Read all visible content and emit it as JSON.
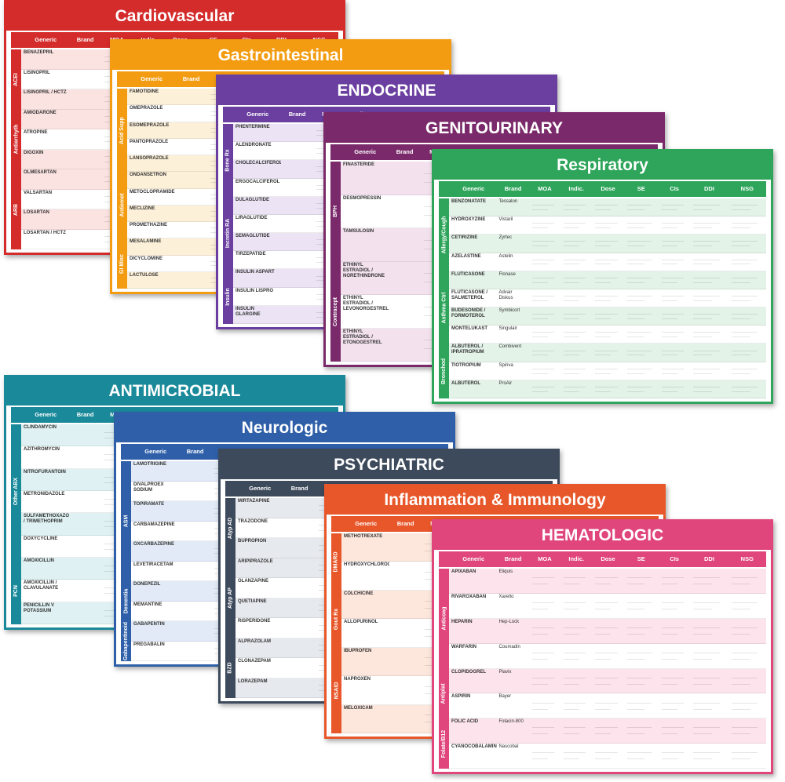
{
  "columns": [
    "Generic",
    "Brand",
    "MOA",
    "Indic.",
    "Dose",
    "SE",
    "CIs",
    "DDI",
    "NSG"
  ],
  "cards": [
    {
      "title": "Cardiovascular",
      "sections": [
        {
          "label": "ACEI",
          "rows": [
            {
              "generic": "BENAZEPRIL"
            },
            {
              "generic": "LISINOPRIL"
            },
            {
              "generic": "LISINOPRIL / HCTZ"
            }
          ]
        },
        {
          "label": "Antiarrhyth",
          "rows": [
            {
              "generic": "AMIODARONE"
            },
            {
              "generic": "ATROPINE"
            },
            {
              "generic": "DIGOXIN"
            }
          ]
        },
        {
          "label": "ARB",
          "rows": [
            {
              "generic": "OLMESARTAN"
            },
            {
              "generic": "VALSARTAN"
            },
            {
              "generic": "LOSARTAN"
            },
            {
              "generic": "LOSARTAN / HCTZ"
            }
          ]
        }
      ]
    },
    {
      "title": "Gastrointestinal",
      "sections": [
        {
          "label": "Acid Supp",
          "rows": [
            {
              "generic": "FAMOTIDINE"
            },
            {
              "generic": "OMEPRAZOLE"
            },
            {
              "generic": "ESOMEPRAZOLE"
            },
            {
              "generic": "PANTOPRAZOLE"
            },
            {
              "generic": "LANSOPRAZOLE"
            }
          ]
        },
        {
          "label": "Antiemet",
          "rows": [
            {
              "generic": "ONDANSETRON"
            },
            {
              "generic": "METOCLOPRAMIDE"
            },
            {
              "generic": "MECLIZINE"
            },
            {
              "generic": "PROMETHAZINE"
            }
          ]
        },
        {
          "label": "GI Misc",
          "rows": [
            {
              "generic": "MESALAMINE"
            },
            {
              "generic": "DICYCLOMINE"
            },
            {
              "generic": "LACTULOSE"
            }
          ]
        }
      ]
    },
    {
      "title": "ENDOCRINE",
      "sections": [
        {
          "label": "Bone Rx",
          "rows": [
            {
              "generic": "PHENTERMINE"
            },
            {
              "generic": "ALENDRONATE"
            },
            {
              "generic": "CHOLECALCIFEROL"
            },
            {
              "generic": "ERGOCALCIFEROL"
            }
          ]
        },
        {
          "label": "Incretin RA",
          "rows": [
            {
              "generic": "DULAGLUTIDE"
            },
            {
              "generic": "LIRAGLUTIDE"
            },
            {
              "generic": "SEMAGLUTIDE"
            },
            {
              "generic": "TIRZEPATIDE"
            }
          ]
        },
        {
          "label": "Insulin",
          "rows": [
            {
              "generic": "INSULIN ASPART"
            },
            {
              "generic": "INSULIN LISPRO"
            },
            {
              "generic": "INSULIN GLARGINE"
            }
          ]
        }
      ]
    },
    {
      "title": "GENITOURINARY",
      "sections": [
        {
          "label": "BPH",
          "rows": [
            {
              "generic": "FINASTERIDE"
            },
            {
              "generic": "DESMOPRESSIN"
            },
            {
              "generic": "TAMSULOSIN"
            }
          ]
        },
        {
          "label": "Contracept",
          "rows": [
            {
              "generic": "ETHINYL ESTRADIOL / NORETHINDRONE"
            },
            {
              "generic": "ETHINYL ESTRADIOL / LEVONORGESTREL"
            },
            {
              "generic": "ETHINYL ESTRADIOL / ETONOGESTREL"
            }
          ]
        }
      ]
    },
    {
      "title": "Respiratory",
      "sections": [
        {
          "label": "Allergy/Cough",
          "rows": [
            {
              "generic": "BENZONATATE",
              "brand": "Tessalon"
            },
            {
              "generic": "HYDROXYZINE",
              "brand": "Vistaril"
            },
            {
              "generic": "CETIRIZINE",
              "brand": "Zyrtec"
            },
            {
              "generic": "AZELASTINE",
              "brand": "Astelin"
            }
          ]
        },
        {
          "label": "Asthma Ctrl",
          "rows": [
            {
              "generic": "FLUTICASONE",
              "brand": "Flonase"
            },
            {
              "generic": "FLUTICASONE / SALMETEROL",
              "brand": "Advair Diskus"
            },
            {
              "generic": "BUDESONIDE / FORMOTEROL",
              "brand": "Symbicort"
            },
            {
              "generic": "MONTELUKAST",
              "brand": "Singulair"
            }
          ]
        },
        {
          "label": "Bronchod",
          "rows": [
            {
              "generic": "ALBUTEROL / IPRATROPIUM",
              "brand": "Combivent"
            },
            {
              "generic": "TIOTROPIUM",
              "brand": "Spiriva"
            },
            {
              "generic": "ALBUTEROL",
              "brand": "ProAir"
            }
          ]
        }
      ]
    },
    {
      "title": "ANTIMICROBIAL",
      "sections": [
        {
          "label": "Other ABX",
          "rows": [
            {
              "generic": "CLINDAMYCIN"
            },
            {
              "generic": "AZITHROMYCIN"
            },
            {
              "generic": "NITROFURANTOIN"
            },
            {
              "generic": "METRONIDAZOLE"
            },
            {
              "generic": "SULFAMETHOXAZOLE / TRIMETHOPRIM"
            },
            {
              "generic": "DOXYCYCLINE"
            }
          ]
        },
        {
          "label": "PCN",
          "rows": [
            {
              "generic": "AMOXICILLIN"
            },
            {
              "generic": "AMOXICILLIN / CLAVULANATE"
            },
            {
              "generic": "PENICILLIN V POTASSIUM"
            }
          ]
        }
      ]
    },
    {
      "title": "Neurologic",
      "sections": [
        {
          "label": "ASM",
          "rows": [
            {
              "generic": "LAMOTRIGINE"
            },
            {
              "generic": "DIVALPROEX SODIUM"
            },
            {
              "generic": "TOPIRAMATE"
            },
            {
              "generic": "CARBAMAZEPINE"
            },
            {
              "generic": "OXCARBAZEPINE"
            },
            {
              "generic": "LEVETIRACETAM"
            }
          ]
        },
        {
          "label": "Dementia",
          "rows": [
            {
              "generic": "DONEPEZIL"
            },
            {
              "generic": "MEMANTINE"
            }
          ]
        },
        {
          "label": "Gabapentinoid",
          "rows": [
            {
              "generic": "GABAPENTIN"
            },
            {
              "generic": "PREGABALIN"
            }
          ]
        }
      ]
    },
    {
      "title": "PSYCHIATRIC",
      "sections": [
        {
          "label": "Atyp AD",
          "rows": [
            {
              "generic": "MIRTAZAPINE"
            },
            {
              "generic": "TRAZODONE"
            },
            {
              "generic": "BUPROPION"
            }
          ]
        },
        {
          "label": "Atyp AP",
          "rows": [
            {
              "generic": "ARIPIPRAZOLE"
            },
            {
              "generic": "OLANZAPINE"
            },
            {
              "generic": "QUETIAPINE"
            },
            {
              "generic": "RISPERIDONE"
            }
          ]
        },
        {
          "label": "BZD",
          "rows": [
            {
              "generic": "ALPRAZOLAM"
            },
            {
              "generic": "CLONAZEPAM"
            },
            {
              "generic": "LORAZEPAM"
            }
          ]
        }
      ]
    },
    {
      "title": "Inflammation & Immunology",
      "sections": [
        {
          "label": "DMARD",
          "rows": [
            {
              "generic": "METHOTREXATE"
            },
            {
              "generic": "HYDROXYCHLOROQUINE"
            }
          ]
        },
        {
          "label": "Gout Rx",
          "rows": [
            {
              "generic": "COLCHICINE"
            },
            {
              "generic": "ALLOPURINOL"
            }
          ]
        },
        {
          "label": "NSAID",
          "rows": [
            {
              "generic": "IBUPROFEN"
            },
            {
              "generic": "NAPROXEN"
            },
            {
              "generic": "MELOXICAM"
            }
          ]
        }
      ]
    },
    {
      "title": "HEMATOLOGIC",
      "sections": [
        {
          "label": "Anticoag",
          "rows": [
            {
              "generic": "APIXABAN",
              "brand": "Eliquis"
            },
            {
              "generic": "RIVAROXABAN",
              "brand": "Xarelto"
            },
            {
              "generic": "HEPARIN",
              "brand": "Hep-Lock"
            },
            {
              "generic": "WARFARIN",
              "brand": "Coumadin"
            }
          ]
        },
        {
          "label": "Antiplat",
          "rows": [
            {
              "generic": "CLOPIDOGREL",
              "brand": "Plavix"
            },
            {
              "generic": "ASPIRIN",
              "brand": "Bayer"
            }
          ]
        },
        {
          "label": "Folate/B12",
          "rows": [
            {
              "generic": "FOLIC ACID",
              "brand": "Folacin-800"
            },
            {
              "generic": "CYANOCOBALAMIN",
              "brand": "Nascobal"
            }
          ]
        }
      ]
    }
  ]
}
